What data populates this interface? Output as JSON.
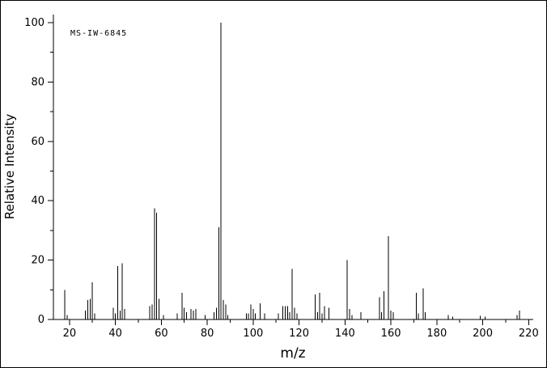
{
  "figure": {
    "annotation": "MS-IW-6845",
    "xlabel": "m/z",
    "ylabel": "Relative Intensity",
    "line_color": "#000000",
    "background_color": "#ffffff"
  },
  "chart_data": {
    "type": "bar",
    "title": "",
    "annotation": "MS-IW-6845",
    "xlabel": "m/z",
    "ylabel": "Relative Intensity",
    "xlim": [
      13,
      222
    ],
    "ylim": [
      0,
      100
    ],
    "grid": false,
    "legend": false,
    "x_ticks_major": [
      20,
      40,
      60,
      80,
      100,
      120,
      140,
      160,
      180,
      200,
      220
    ],
    "x_ticks_minor": [
      30,
      50,
      70,
      90,
      110,
      130,
      150,
      170,
      190,
      210
    ],
    "y_ticks_major": [
      0,
      20,
      40,
      60,
      80,
      100
    ],
    "y_ticks_minor": [
      10,
      30,
      50,
      70,
      90
    ],
    "peaks": [
      [
        18,
        10
      ],
      [
        19,
        1.5
      ],
      [
        27,
        3
      ],
      [
        28,
        6.5
      ],
      [
        29,
        7
      ],
      [
        30,
        12.5
      ],
      [
        31,
        2
      ],
      [
        39,
        4
      ],
      [
        40,
        2
      ],
      [
        41,
        18
      ],
      [
        42,
        3
      ],
      [
        43,
        19
      ],
      [
        44,
        3.5
      ],
      [
        55,
        4.5
      ],
      [
        56,
        5
      ],
      [
        57,
        37.5
      ],
      [
        58,
        36
      ],
      [
        59,
        7
      ],
      [
        61,
        1.5
      ],
      [
        67,
        2
      ],
      [
        69,
        9
      ],
      [
        70,
        4
      ],
      [
        71,
        2.5
      ],
      [
        73,
        3.5
      ],
      [
        74,
        3
      ],
      [
        75,
        3.5
      ],
      [
        79,
        1.5
      ],
      [
        83,
        2.5
      ],
      [
        84,
        4
      ],
      [
        85,
        31
      ],
      [
        86,
        100
      ],
      [
        87,
        6.5
      ],
      [
        88,
        5
      ],
      [
        89,
        1.5
      ],
      [
        97,
        2
      ],
      [
        98,
        2
      ],
      [
        99,
        5
      ],
      [
        100,
        3.5
      ],
      [
        101,
        2
      ],
      [
        103,
        5.5
      ],
      [
        105,
        2
      ],
      [
        111,
        2
      ],
      [
        113,
        4.5
      ],
      [
        114,
        4.5
      ],
      [
        115,
        4.5
      ],
      [
        116,
        2.5
      ],
      [
        117,
        17
      ],
      [
        118,
        4
      ],
      [
        119,
        2
      ],
      [
        127,
        8.5
      ],
      [
        128,
        2.5
      ],
      [
        129,
        9
      ],
      [
        130,
        2
      ],
      [
        131,
        4.5
      ],
      [
        133,
        4
      ],
      [
        141,
        20
      ],
      [
        142,
        3.5
      ],
      [
        143,
        1.5
      ],
      [
        147,
        2.5
      ],
      [
        155,
        7.5
      ],
      [
        156,
        2.5
      ],
      [
        157,
        9.5
      ],
      [
        159,
        28
      ],
      [
        160,
        3
      ],
      [
        161,
        2.5
      ],
      [
        171,
        9
      ],
      [
        172,
        2
      ],
      [
        174,
        10.5
      ],
      [
        175,
        2.5
      ],
      [
        185,
        1.5
      ],
      [
        187,
        1
      ],
      [
        199,
        1.2
      ],
      [
        201,
        1
      ],
      [
        215,
        1.5
      ],
      [
        216,
        3
      ]
    ]
  }
}
